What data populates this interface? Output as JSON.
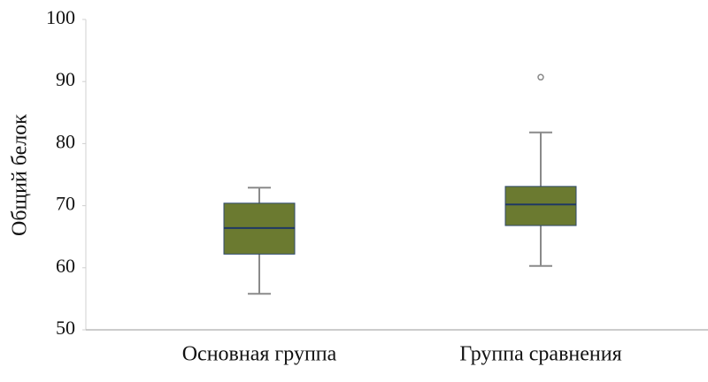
{
  "chart_data": {
    "type": "box",
    "y_label": "Общий белок",
    "categories": [
      "Основная группа",
      "Группа сравнения"
    ],
    "boxes": [
      {
        "min": 55.8,
        "q1": 62.2,
        "median": 66.4,
        "q3": 70.4,
        "max": 72.9,
        "outliers": []
      },
      {
        "min": 60.3,
        "q1": 66.8,
        "median": 70.2,
        "q3": 73.1,
        "max": 81.8,
        "outliers": [
          90.7
        ]
      }
    ],
    "color": "#6b7a30",
    "median_color": "#1f3864",
    "whisker_color": "#8a8a8a",
    "ylim": [
      50,
      100
    ],
    "yticks": [
      50,
      60,
      70,
      80,
      90,
      100
    ]
  }
}
